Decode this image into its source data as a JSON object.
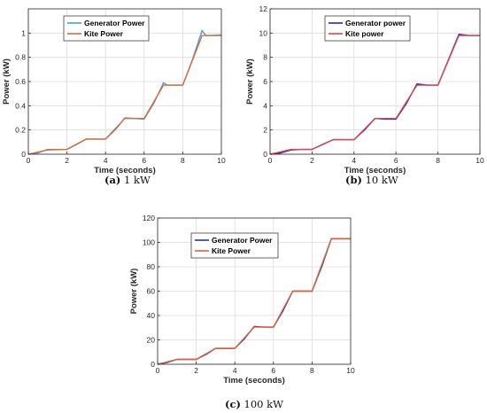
{
  "chart_data": [
    {
      "type": "line",
      "panel": "a",
      "caption_label": "(a)",
      "caption_text": "1 kW",
      "xlabel": "Time (seconds)",
      "ylabel": "Power (kW)",
      "xlim": [
        0,
        10
      ],
      "ylim": [
        0,
        1.2
      ],
      "xticks": [
        0,
        2,
        4,
        6,
        8,
        10
      ],
      "yticks": [
        0,
        0.2,
        0.4,
        0.6,
        0.8,
        1
      ],
      "grid": true,
      "legend_position": "top-left",
      "series": [
        {
          "name": "Generator Power",
          "color": "#4a9fd8",
          "x": [
            0,
            0.5,
            1,
            1.5,
            2,
            2.5,
            3,
            3.5,
            4,
            4.5,
            5,
            5.5,
            6,
            6.5,
            7,
            7.2,
            7.5,
            8,
            8.5,
            9,
            9.2,
            9.5,
            10
          ],
          "y": [
            0,
            0.01,
            0.04,
            0.04,
            0.04,
            0.08,
            0.125,
            0.125,
            0.125,
            0.2,
            0.3,
            0.295,
            0.29,
            0.42,
            0.59,
            0.57,
            0.57,
            0.57,
            0.78,
            1.02,
            0.98,
            0.98,
            0.985
          ]
        },
        {
          "name": "Kite Power",
          "color": "#d96a3b",
          "x": [
            0,
            1,
            2,
            3,
            4,
            5,
            6,
            7,
            8,
            9,
            10
          ],
          "y": [
            0,
            0.035,
            0.04,
            0.125,
            0.125,
            0.295,
            0.295,
            0.57,
            0.57,
            0.98,
            0.98
          ]
        }
      ]
    },
    {
      "type": "line",
      "panel": "b",
      "caption_label": "(b)",
      "caption_text": "10 kW",
      "xlabel": "Time (seconds)",
      "ylabel": "Power (kW)",
      "xlim": [
        0,
        10
      ],
      "ylim": [
        0,
        12
      ],
      "xticks": [
        0,
        2,
        4,
        6,
        8,
        10
      ],
      "yticks": [
        0,
        2,
        4,
        6,
        8,
        10,
        12
      ],
      "grid": true,
      "legend_position": "top",
      "series": [
        {
          "name": "Generator power",
          "color": "#2b22c4",
          "x": [
            0,
            0.5,
            1,
            1.5,
            2,
            2.5,
            3,
            3.5,
            4,
            4.5,
            5,
            5.5,
            6,
            6.5,
            7,
            7.5,
            8,
            8.5,
            9,
            9.5,
            10
          ],
          "y": [
            0,
            0.1,
            0.35,
            0.4,
            0.4,
            0.8,
            1.2,
            1.2,
            1.2,
            2.0,
            2.95,
            2.9,
            2.9,
            4.2,
            5.8,
            5.7,
            5.7,
            7.8,
            9.9,
            9.8,
            9.8
          ]
        },
        {
          "name": "Kite power",
          "color": "#d94a4a",
          "x": [
            0,
            1,
            2,
            3,
            4,
            5,
            6,
            7,
            8,
            9,
            10
          ],
          "y": [
            0,
            0.4,
            0.4,
            1.2,
            1.2,
            2.95,
            2.95,
            5.7,
            5.7,
            9.8,
            9.8
          ]
        }
      ]
    },
    {
      "type": "line",
      "panel": "c",
      "caption_label": "(c)",
      "caption_text": "100 kW",
      "xlabel": "Time (seconds)",
      "ylabel": "Power (kW)",
      "xlim": [
        0,
        10
      ],
      "ylim": [
        0,
        120
      ],
      "xticks": [
        0,
        2,
        4,
        6,
        8,
        10
      ],
      "yticks": [
        0,
        20,
        40,
        60,
        80,
        100,
        120
      ],
      "grid": true,
      "legend_position": "top",
      "series": [
        {
          "name": "Generator Power",
          "color": "#2233aa",
          "x": [
            0,
            0.5,
            1,
            1.5,
            2,
            2.5,
            3,
            3.5,
            4,
            4.5,
            5,
            5.5,
            6,
            6.5,
            7,
            7.5,
            8,
            8.5,
            9,
            9.5,
            10
          ],
          "y": [
            0,
            1.5,
            4,
            4,
            4,
            8,
            13,
            13,
            13,
            21,
            31,
            30.5,
            30.5,
            44,
            60,
            60,
            60,
            80,
            103,
            103,
            103
          ]
        },
        {
          "name": "Kite Power",
          "color": "#d9643a",
          "x": [
            0,
            1,
            2,
            3,
            4,
            5,
            6,
            7,
            8,
            9,
            10
          ],
          "y": [
            0,
            4,
            4,
            13,
            13,
            30.5,
            30.5,
            60,
            60,
            103,
            103
          ]
        }
      ]
    }
  ]
}
